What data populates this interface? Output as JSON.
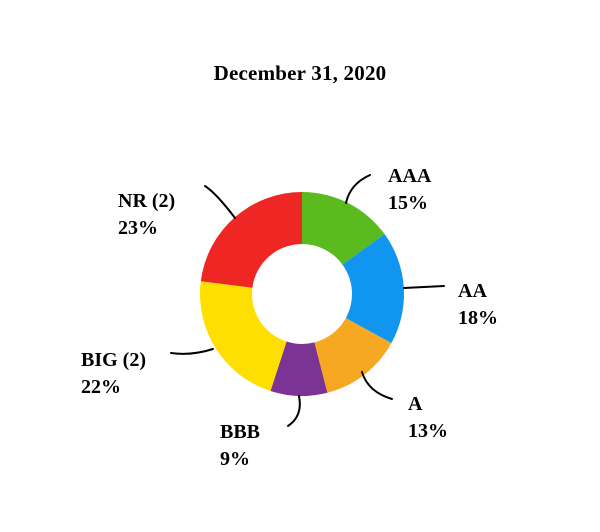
{
  "title": "December 31, 2020",
  "chart_data": {
    "type": "pie",
    "subtype": "donut",
    "title": "December 31, 2020",
    "start_angle_deg": 0,
    "direction": "clockwise",
    "legend_position": "callout-labels",
    "slices": [
      {
        "label": "AAA",
        "pct_label": "15%",
        "value": 15,
        "color": "#5BBA1E"
      },
      {
        "label": "AA",
        "pct_label": "18%",
        "value": 18,
        "color": "#1095F0"
      },
      {
        "label": "A",
        "pct_label": "13%",
        "value": 13,
        "color": "#F7A823"
      },
      {
        "label": "BBB",
        "pct_label": "9%",
        "value": 9,
        "color": "#7B3394"
      },
      {
        "label": "BIG (2)",
        "pct_label": "22%",
        "value": 22,
        "color": "#FFDF00"
      },
      {
        "label": "NR (2)",
        "pct_label": "23%",
        "value": 23,
        "color": "#EE2624"
      }
    ]
  }
}
